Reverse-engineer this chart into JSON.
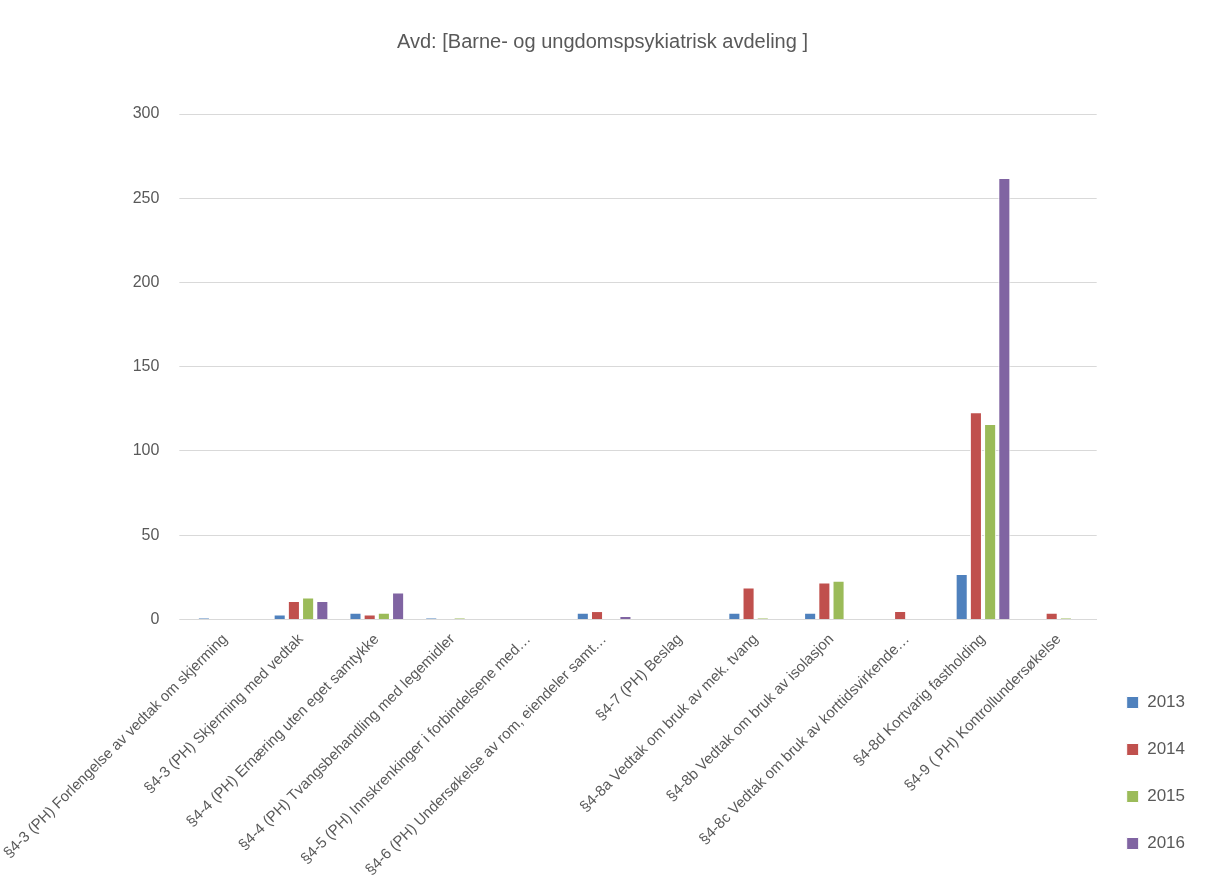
{
  "chart_data": {
    "type": "bar",
    "title": "Avd: [Barne- og ungdomspsykiatrisk avdeling ]",
    "categories": [
      "§4-3 (PH) Forlengelse av vedtak om skjerming",
      "§4-3 (PH) Skjerming med vedtak",
      "§4-4 (PH) Ernæring uten eget samtykke",
      "§4-4 (PH) Tvangsbehandling med legemidler",
      "§4-5 (PH) Innskrenkinger i forbindelsene med…",
      "§4-6 (PH) Undersøkelse av rom, eiendeler samt…",
      "§4-7 (PH) Beslag",
      "§4-8a Vedtak om bruk av mek. tvang",
      "§4-8b Vedtak om bruk av isolasjon",
      "§4-8c Vedtak om bruk av korttidsvirkende…",
      "§4-8d Kortvarig fastholding",
      "§4-9 ( PH) Kontrollundersøkelse"
    ],
    "series": [
      {
        "name": "2013",
        "color": "#4f81bd",
        "values": [
          1,
          3,
          4,
          1,
          0,
          4,
          0,
          4,
          4,
          0,
          27,
          0
        ]
      },
      {
        "name": "2014",
        "color": "#c0504d",
        "values": [
          0,
          11,
          3,
          0,
          0,
          5,
          0,
          19,
          22,
          5,
          123,
          4
        ]
      },
      {
        "name": "2015",
        "color": "#9bbb59",
        "values": [
          0,
          13,
          4,
          1,
          0,
          0,
          0,
          1,
          23,
          0,
          116,
          1
        ]
      },
      {
        "name": "2016",
        "color": "#8064a2",
        "values": [
          0,
          11,
          16,
          0,
          0,
          2,
          0,
          0,
          0,
          0,
          262,
          0
        ]
      }
    ],
    "ylim": [
      0,
      300
    ],
    "yticks": [
      0,
      50,
      100,
      150,
      200,
      250,
      300
    ],
    "grid": "y",
    "legend": "right"
  }
}
